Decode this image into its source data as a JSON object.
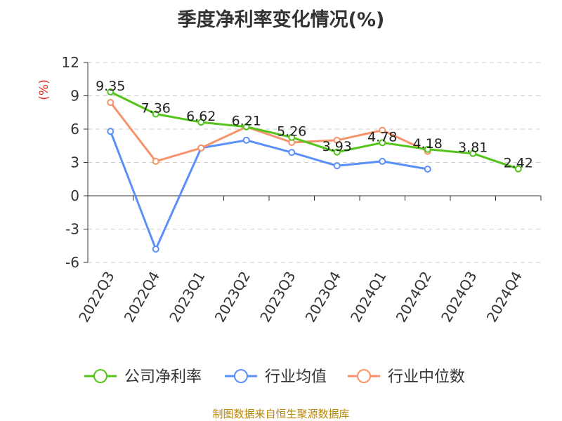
{
  "chart_data": {
    "type": "line",
    "title": "季度净利率变化情况(%)",
    "ylabel": "(%)",
    "xlabel": "",
    "categories": [
      "2022Q3",
      "2022Q4",
      "2023Q1",
      "2023Q2",
      "2023Q3",
      "2023Q4",
      "2024Q1",
      "2024Q2",
      "2024Q3",
      "2024Q4"
    ],
    "ylim": [
      -6,
      12
    ],
    "yticks": [
      "12",
      "9",
      "6",
      "3",
      "0",
      "-3",
      "-6"
    ],
    "grid": true,
    "legend_position": "bottom",
    "series": [
      {
        "name": "公司净利率",
        "color": "#52c41a",
        "values": [
          9.35,
          7.36,
          6.62,
          6.21,
          5.26,
          3.93,
          4.78,
          4.18,
          3.81,
          2.42
        ],
        "labels": [
          "9.35",
          "7.36",
          "6.62",
          "6.21",
          "5.26",
          "3.93",
          "4.78",
          "4.18",
          "3.81",
          "2.42"
        ]
      },
      {
        "name": "行业均值",
        "color": "#5b8ff9",
        "values": [
          5.8,
          -4.8,
          4.3,
          5.0,
          3.9,
          2.7,
          3.1,
          2.4,
          null,
          null
        ]
      },
      {
        "name": "行业中位数",
        "color": "#f6936a",
        "values": [
          8.4,
          3.1,
          4.3,
          6.2,
          4.8,
          5.0,
          5.9,
          4.0,
          null,
          null
        ]
      }
    ]
  },
  "footer": {
    "source": "制图数据来自恒生聚源数据库"
  }
}
